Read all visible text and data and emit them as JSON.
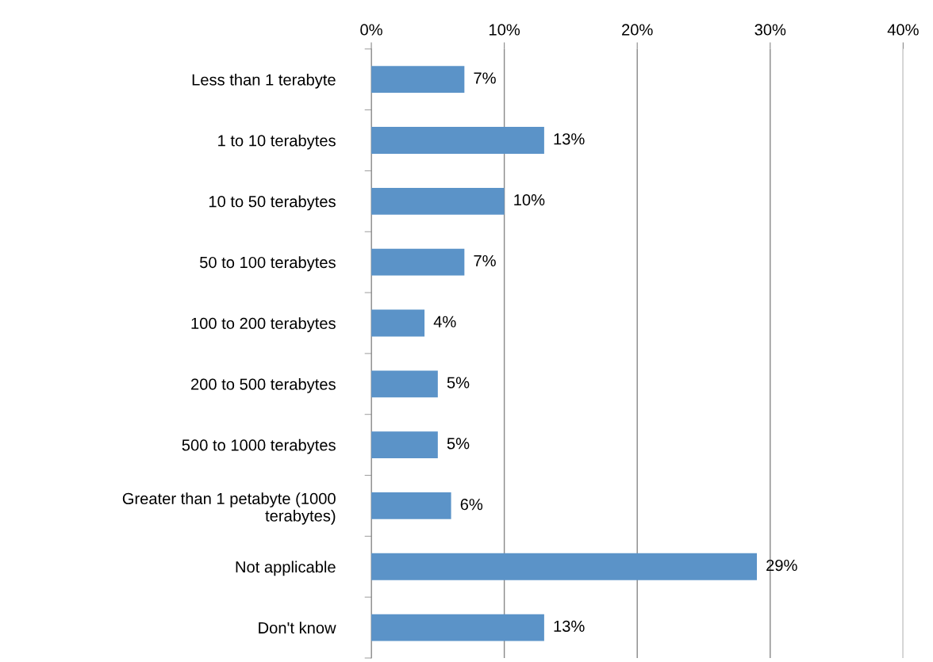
{
  "chart_data": {
    "type": "bar",
    "orientation": "horizontal",
    "categories": [
      "Less than 1 terabyte",
      "1 to 10 terabytes",
      "10 to 50 terabytes",
      "50 to 100 terabytes",
      "100 to 200 terabytes",
      "200 to 500 terabytes",
      "500 to 1000 terabytes",
      "Greater than 1 petabyte (1000\nterabytes)",
      "Not applicable",
      "Don't know"
    ],
    "values": [
      7,
      13,
      10,
      7,
      4,
      5,
      5,
      6,
      29,
      13
    ],
    "value_labels": [
      "7%",
      "13%",
      "10%",
      "7%",
      "4%",
      "5%",
      "5%",
      "6%",
      "29%",
      "13%"
    ],
    "color": "#5b93c8",
    "xlim": [
      0,
      40
    ],
    "xticks": [
      {
        "value": 0,
        "label": "0%"
      },
      {
        "value": 10,
        "label": "10%"
      },
      {
        "value": 20,
        "label": "20%"
      },
      {
        "value": 30,
        "label": "30%"
      },
      {
        "value": 40,
        "label": "40%"
      }
    ],
    "grid": "x"
  }
}
